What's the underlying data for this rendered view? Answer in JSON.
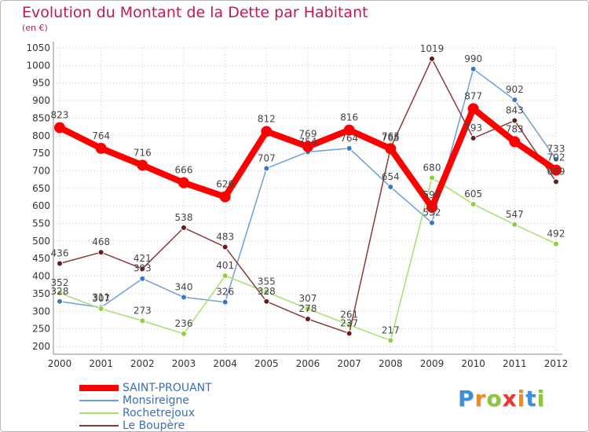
{
  "header": {
    "title": "Evolution du Montant de la Dette par Habitant",
    "subtitle": "(en €)"
  },
  "logo": {
    "text": "Proxiti",
    "letters": [
      "P",
      "r",
      "o",
      "x",
      "i",
      "t",
      "i"
    ],
    "colors": [
      "#3d8fd6",
      "#f08a1c",
      "#8cc63f",
      "#e53935",
      "#f08a1c",
      "#3d8fd6",
      "#8cc63f"
    ]
  },
  "chart_data": {
    "type": "line",
    "title": "Evolution du Montant de la Dette par Habitant",
    "subtitle": "(en €)",
    "xlabel": "",
    "ylabel": "",
    "x": [
      "2000",
      "2001",
      "2002",
      "2003",
      "2004",
      "2005",
      "2006",
      "2007",
      "2008",
      "2009",
      "2010",
      "2011",
      "2012"
    ],
    "ylim": [
      200,
      1050
    ],
    "yticks": [
      200,
      250,
      300,
      350,
      400,
      450,
      500,
      550,
      600,
      650,
      700,
      750,
      800,
      850,
      900,
      950,
      1000,
      1050
    ],
    "grid": "horizontal-dotted",
    "legend_position": "bottom-left",
    "series": [
      {
        "name": "SAINT-PROUANT",
        "values": [
          823,
          764,
          716,
          666,
          626,
          812,
          769,
          816,
          763,
          596,
          877,
          783,
          702
        ],
        "labels": [
          "823",
          "764",
          "716",
          "666",
          "626",
          "812",
          "769",
          "816",
          "763",
          "596",
          "877",
          "783",
          "702"
        ],
        "color": "#ff0000",
        "marker_color": "#ff0000",
        "emphasis": true
      },
      {
        "name": "Monsireigne",
        "values": [
          328,
          311,
          393,
          340,
          326,
          707,
          754,
          764,
          654,
          552,
          990,
          902,
          733
        ],
        "labels": [
          "328",
          "311",
          "393",
          "340",
          "326",
          "707",
          "754",
          "764",
          "654",
          "552",
          "990",
          "902",
          "733"
        ],
        "color": "#6f9fd8",
        "marker_color": "#3a78c2",
        "emphasis": false
      },
      {
        "name": "Rochetrejoux",
        "values": [
          352,
          307,
          273,
          236,
          401,
          355,
          307,
          261,
          217,
          680,
          605,
          547,
          492
        ],
        "labels": [
          "352",
          "307",
          "273",
          "236",
          "401",
          "355",
          "307",
          "261",
          "217",
          "680",
          "605",
          "547",
          "492"
        ],
        "color": "#a8df6c",
        "marker_color": "#8cd13f",
        "emphasis": false
      },
      {
        "name": "Le Boupère",
        "values": [
          436,
          468,
          421,
          538,
          483,
          328,
          278,
          237,
          765,
          1019,
          793,
          843,
          669
        ],
        "labels": [
          "436",
          "468",
          "421",
          "538",
          "483",
          "328",
          "278",
          "237",
          "765",
          "1019",
          "793",
          "843",
          "669"
        ],
        "color": "#8a3a3a",
        "marker_color": "#6a1b1b",
        "emphasis": false
      }
    ]
  }
}
